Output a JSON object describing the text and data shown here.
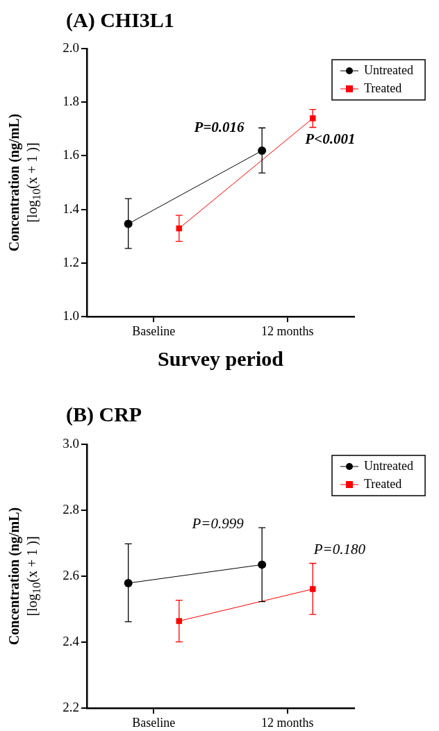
{
  "chart_data": [
    {
      "type": "line",
      "title": "(A) CHI3L1",
      "xlabel": "Survey period",
      "ylabel": "Concentration (ng/mL)\n[log$_{10}$(x + 1 )]",
      "categories": [
        "Baseline",
        "12 months"
      ],
      "series": [
        {
          "name": "Untreated",
          "color": "#000000",
          "marker": "circle",
          "values": [
            1.346,
            1.619
          ],
          "errors": [
            [
              1.254,
              1.44
            ],
            [
              1.536,
              1.704
            ]
          ]
        },
        {
          "name": "Treated",
          "color": "#ff0000",
          "marker": "square",
          "values": [
            1.329,
            1.74
          ],
          "errors": [
            [
              1.281,
              1.378
            ],
            [
              1.706,
              1.773
            ]
          ]
        }
      ],
      "ylim": [
        1.0,
        2.0
      ],
      "yticks": [
        {
          "value": 1.0,
          "label": "1.0"
        },
        1.2,
        1.4,
        1.6,
        1.8,
        {
          "value": 2.0,
          "label": "2.0"
        }
      ],
      "grid": false,
      "legend": "top right",
      "annotations": [
        "P=0.016",
        "P<0.001"
      ]
    },
    {
      "type": "line",
      "title": "(B) CRP",
      "ylabel": "Concentration (ng/mL)\n[log$_{10}$(x + 1 )]",
      "categories": [
        "Baseline",
        "12 months"
      ],
      "series": [
        {
          "name": "Untreated",
          "color": "#000000",
          "marker": "circle",
          "values": [
            2.579,
            2.635
          ],
          "errors": [
            [
              2.462,
              2.698
            ],
            [
              2.523,
              2.747
            ]
          ]
        },
        {
          "name": "Treated",
          "color": "#ff0000",
          "marker": "square",
          "values": [
            2.464,
            2.561
          ],
          "errors": [
            [
              2.401,
              2.527
            ],
            [
              2.484,
              2.639
            ]
          ]
        }
      ],
      "ylim": [
        2.2,
        3.0
      ],
      "yticks": [
        2.2,
        2.4,
        2.6,
        2.8,
        {
          "value": 3.0,
          "label": "3.0"
        }
      ],
      "grid": false,
      "legend": "top right",
      "annotations": [
        "P=0.999",
        "P=0.180"
      ]
    }
  ]
}
